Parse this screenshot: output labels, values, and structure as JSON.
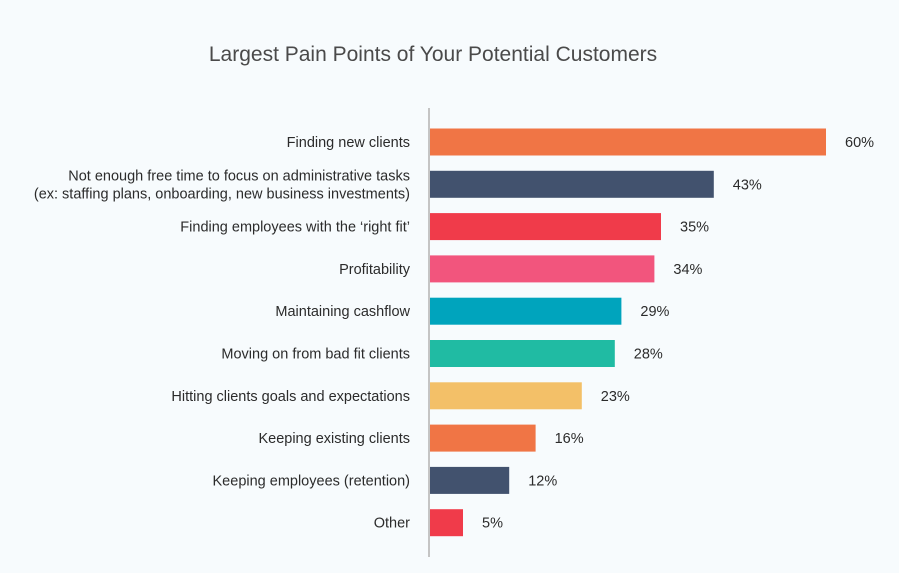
{
  "chart_data": {
    "type": "bar",
    "orientation": "horizontal",
    "title": "Largest Pain Points of Your Potential Customers",
    "categories": [
      [
        "Finding new clients"
      ],
      [
        "Not enough free time to focus on administrative tasks",
        "(ex: staffing plans, onboarding, new business investments)"
      ],
      [
        "Finding employees with the ‘right fit’"
      ],
      [
        "Profitability"
      ],
      [
        "Maintaining cashflow"
      ],
      [
        "Moving on from bad fit clients"
      ],
      [
        "Hitting clients goals and expectations"
      ],
      [
        "Keeping existing clients"
      ],
      [
        "Keeping employees (retention)"
      ],
      [
        "Other"
      ]
    ],
    "values": [
      60,
      43,
      35,
      34,
      29,
      28,
      23,
      16,
      12,
      5
    ],
    "value_labels": [
      "60%",
      "43%",
      "35%",
      "34%",
      "29%",
      "28%",
      "23%",
      "16%",
      "12%",
      "5%"
    ],
    "colors": [
      "#f07545",
      "#42526e",
      "#f03b4a",
      "#f2557d",
      "#00a4bd",
      "#20bba3",
      "#f3c068",
      "#f07545",
      "#42526e",
      "#f03b4a"
    ],
    "xlim": [
      0,
      60
    ],
    "grid": false,
    "legend": "none"
  }
}
